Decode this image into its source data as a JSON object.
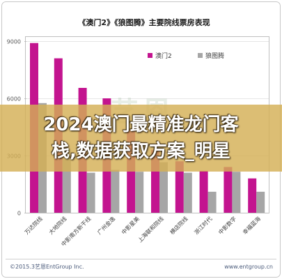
{
  "chart_data": {
    "type": "bar",
    "title": "《澳门2》《狼图腾》主要院线票房表现",
    "xlabel": "",
    "ylabel": "",
    "categories": [
      "万达院线",
      "大地院线",
      "中影南方新干线",
      "广州金逸",
      "中影星美",
      "上海联和院线",
      "横店院线",
      "浙江时代",
      "中影数字",
      "幸福蓝海"
    ],
    "series": [
      {
        "name": "澳门2",
        "color": "#C3148F",
        "values": [
          8900,
          8100,
          6550,
          6000,
          4300,
          3300,
          2700,
          2200,
          2400,
          1800
        ]
      },
      {
        "name": "狼图腾",
        "color": "#A6A6A6",
        "values": [
          5750,
          2800,
          2100,
          2250,
          2150,
          2650,
          2100,
          1100,
          2150,
          1100
        ]
      }
    ],
    "yticks": [
      0,
      3000,
      6000,
      9000
    ],
    "ylim": [
      0,
      9000
    ],
    "grid": true,
    "legend": "top-right"
  },
  "overlay": {
    "line1": "2024澳门最精准龙门客",
    "line2": "栈,数据获取方案_明星"
  },
  "footer": {
    "copyright": "©2015.3艺恩EntGroup Inc.",
    "website": "www.entgroup.cn"
  },
  "watermark": "艺恩"
}
